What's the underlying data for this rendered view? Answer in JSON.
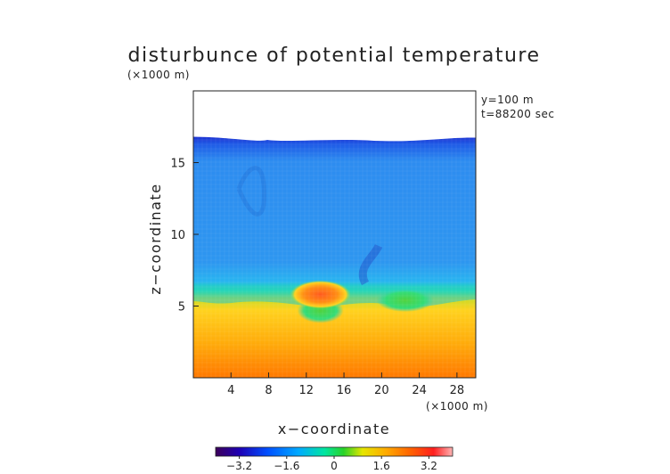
{
  "chart_data": {
    "type": "heatmap",
    "title": "disturbunce of potential temperature",
    "xlabel": "x−coordinate",
    "ylabel": "z−coordinate",
    "x_unit": "(×1000 m)",
    "y_unit": "(×1000 m)",
    "xlim": [
      0,
      30
    ],
    "ylim": [
      0,
      20
    ],
    "x_ticks": [
      4,
      8,
      12,
      16,
      20,
      24,
      28
    ],
    "x_tick_labels": [
      "4",
      "8",
      "12",
      "16",
      "20",
      "24",
      "28"
    ],
    "y_ticks": [
      5,
      10,
      15
    ],
    "y_tick_labels": [
      "5",
      "10",
      "15"
    ],
    "annotations": [
      "y=100 m",
      "t=88200 sec"
    ],
    "colorbar": {
      "min": -4.0,
      "max": 4.0,
      "ticks": [
        -3.2,
        -1.6,
        0,
        1.6,
        3.2
      ],
      "tick_labels": [
        "−3.2",
        "−1.6",
        "0",
        "1.6",
        "3.2"
      ]
    },
    "field_description": {
      "domain_top_km": 16.8,
      "layers": [
        {
          "z_range_km": [
            0,
            5.5
          ],
          "approx_value": 2.4
        },
        {
          "z_range_km": [
            5.5,
            7
          ],
          "approx_value": 0.3
        },
        {
          "z_range_km": [
            7,
            16
          ],
          "approx_value": -1.8
        },
        {
          "z_range_km": [
            16,
            16.8
          ],
          "approx_value": -3.0
        }
      ],
      "warm_bubble": {
        "x_center_km": 13.5,
        "z_center_km": 5.8,
        "approx_value": 3.2
      }
    },
    "grid": true,
    "legend": "bottom (colorbar)"
  },
  "colors": {
    "colormap": [
      "#3c005a",
      "#0000b4",
      "#0050ff",
      "#00aaff",
      "#00e6a0",
      "#28d228",
      "#e6e600",
      "#ffaa00",
      "#ff6400",
      "#ff1e1e",
      "#ffb4b4"
    ]
  }
}
